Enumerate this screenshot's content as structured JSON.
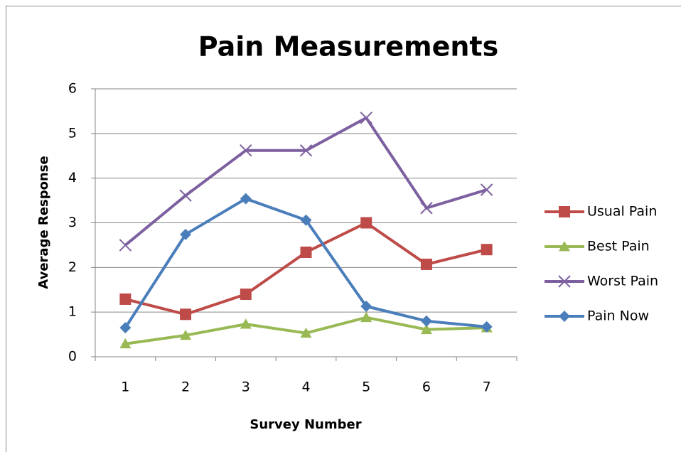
{
  "chart_data": {
    "type": "line",
    "title": "Pain Measurements",
    "x_label": "Survey Number",
    "y_label": "Average Response",
    "categories": [
      "1",
      "2",
      "3",
      "4",
      "5",
      "6",
      "7"
    ],
    "ylim": [
      0,
      6
    ],
    "yticks": [
      0,
      1,
      2,
      3,
      4,
      5,
      6
    ],
    "grid": true,
    "legend": "right",
    "series": [
      {
        "name": "Usual Pain",
        "color": "#be4b48",
        "marker": "square",
        "values": [
          1.29,
          0.95,
          1.4,
          2.34,
          3.0,
          2.07,
          2.4
        ]
      },
      {
        "name": "Best Pain",
        "color": "#98b954",
        "marker": "triangle",
        "values": [
          0.29,
          0.48,
          0.73,
          0.53,
          0.88,
          0.61,
          0.65
        ]
      },
      {
        "name": "Worst Pain",
        "color": "#7d60a0",
        "marker": "x",
        "values": [
          2.5,
          3.61,
          4.62,
          4.62,
          5.35,
          3.33,
          3.74
        ]
      },
      {
        "name": "Pain Now",
        "color": "#4a7ebb",
        "marker": "diamond",
        "values": [
          0.65,
          2.74,
          3.54,
          3.06,
          1.13,
          0.8,
          0.67
        ]
      }
    ]
  }
}
